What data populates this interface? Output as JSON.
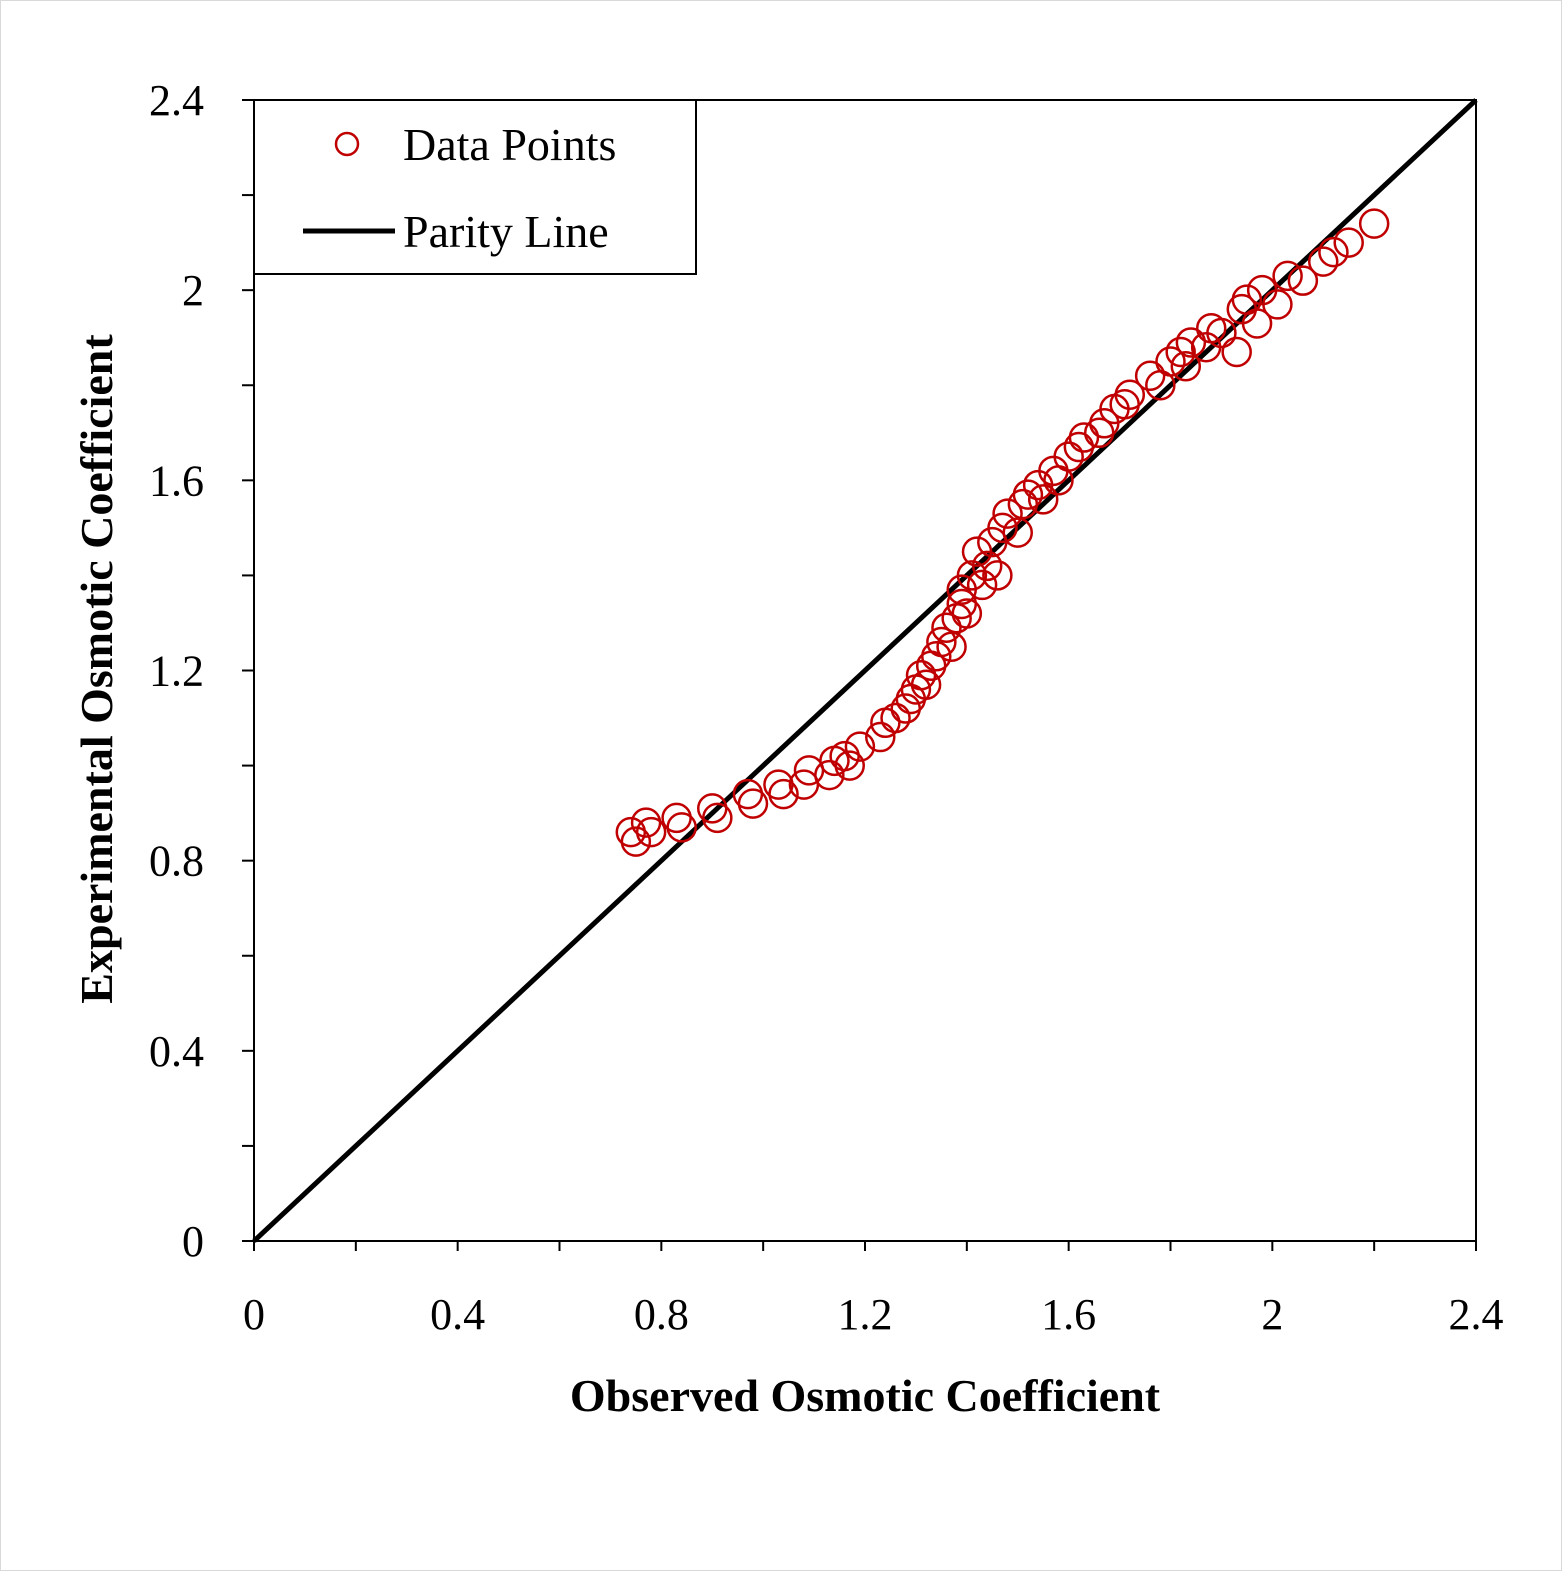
{
  "chart_data": {
    "type": "scatter",
    "xlabel": "Observed Osmotic Coefficient",
    "ylabel": "Experimental Osmotic Coefficient",
    "xlim": [
      0,
      2.4
    ],
    "ylim": [
      0,
      2.4
    ],
    "x_ticks": [
      "0",
      "0.4",
      "0.8",
      "1.2",
      "1.6",
      "2",
      "2.4"
    ],
    "y_ticks": [
      "0",
      "0.4",
      "0.8",
      "1.2",
      "1.6",
      "2",
      "2.4"
    ],
    "grid": false,
    "legend_position": "top-left",
    "series": [
      {
        "name": "Data Points",
        "marker": "open-circle",
        "color": "#c00000",
        "points": [
          [
            0.74,
            0.86
          ],
          [
            0.75,
            0.84
          ],
          [
            0.77,
            0.88
          ],
          [
            0.78,
            0.86
          ],
          [
            0.83,
            0.89
          ],
          [
            0.84,
            0.87
          ],
          [
            0.9,
            0.91
          ],
          [
            0.91,
            0.89
          ],
          [
            0.97,
            0.94
          ],
          [
            0.98,
            0.92
          ],
          [
            1.03,
            0.96
          ],
          [
            1.04,
            0.94
          ],
          [
            1.08,
            0.96
          ],
          [
            1.09,
            0.99
          ],
          [
            1.13,
            0.98
          ],
          [
            1.14,
            1.01
          ],
          [
            1.16,
            1.02
          ],
          [
            1.17,
            1.0
          ],
          [
            1.19,
            1.04
          ],
          [
            1.23,
            1.06
          ],
          [
            1.24,
            1.09
          ],
          [
            1.26,
            1.1
          ],
          [
            1.28,
            1.12
          ],
          [
            1.29,
            1.14
          ],
          [
            1.3,
            1.16
          ],
          [
            1.31,
            1.19
          ],
          [
            1.32,
            1.17
          ],
          [
            1.33,
            1.21
          ],
          [
            1.34,
            1.23
          ],
          [
            1.35,
            1.26
          ],
          [
            1.36,
            1.29
          ],
          [
            1.37,
            1.25
          ],
          [
            1.38,
            1.31
          ],
          [
            1.39,
            1.34
          ],
          [
            1.39,
            1.37
          ],
          [
            1.4,
            1.32
          ],
          [
            1.41,
            1.4
          ],
          [
            1.42,
            1.45
          ],
          [
            1.43,
            1.38
          ],
          [
            1.44,
            1.42
          ],
          [
            1.45,
            1.47
          ],
          [
            1.46,
            1.4
          ],
          [
            1.47,
            1.5
          ],
          [
            1.48,
            1.53
          ],
          [
            1.5,
            1.49
          ],
          [
            1.51,
            1.55
          ],
          [
            1.52,
            1.57
          ],
          [
            1.54,
            1.59
          ],
          [
            1.55,
            1.56
          ],
          [
            1.57,
            1.62
          ],
          [
            1.58,
            1.6
          ],
          [
            1.6,
            1.65
          ],
          [
            1.62,
            1.67
          ],
          [
            1.63,
            1.69
          ],
          [
            1.66,
            1.7
          ],
          [
            1.67,
            1.72
          ],
          [
            1.69,
            1.75
          ],
          [
            1.71,
            1.76
          ],
          [
            1.72,
            1.78
          ],
          [
            1.76,
            1.82
          ],
          [
            1.78,
            1.8
          ],
          [
            1.8,
            1.85
          ],
          [
            1.82,
            1.87
          ],
          [
            1.83,
            1.84
          ],
          [
            1.84,
            1.89
          ],
          [
            1.87,
            1.88
          ],
          [
            1.88,
            1.92
          ],
          [
            1.9,
            1.91
          ],
          [
            1.93,
            1.87
          ],
          [
            1.94,
            1.96
          ],
          [
            1.95,
            1.98
          ],
          [
            1.97,
            1.93
          ],
          [
            1.98,
            2.0
          ],
          [
            2.01,
            1.97
          ],
          [
            2.03,
            2.03
          ],
          [
            2.06,
            2.02
          ],
          [
            2.1,
            2.06
          ],
          [
            2.12,
            2.08
          ],
          [
            2.15,
            2.1
          ],
          [
            2.2,
            2.14
          ]
        ]
      },
      {
        "name": "Parity Line",
        "type": "line",
        "color": "#000000",
        "x": [
          0,
          2.4
        ],
        "y": [
          0,
          2.4
        ]
      }
    ]
  }
}
